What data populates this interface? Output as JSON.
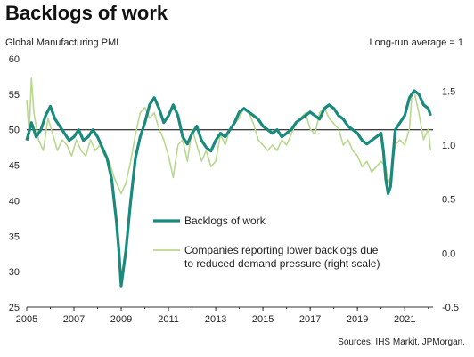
{
  "title": "Backlogs of work",
  "source": "Sources: IHS Markit, JPMorgan.",
  "colors": {
    "primary": "#1a8a7c",
    "secondary": "#b9d88e",
    "reference": "#000000"
  },
  "chart_data": {
    "type": "line",
    "left_axis_title": "Global  Manufacturing  PMI",
    "right_axis_title": "Long-run  average = 1",
    "x_ticks": [
      "2005",
      "2007",
      "2009",
      "2011",
      "2013",
      "2015",
      "2017",
      "2019",
      "2021"
    ],
    "xlim": [
      2005.0,
      2022.2
    ],
    "y_left": {
      "min": 25,
      "max": 60,
      "ticks": [
        "60",
        "55",
        "50",
        "45",
        "40",
        "35",
        "30",
        "25"
      ]
    },
    "y_right": {
      "min": -0.5,
      "max": 1.8,
      "ticks": [
        "1.5",
        "1.0",
        "0.5",
        "0.0",
        "-0.5"
      ]
    },
    "reference_line_left": 50,
    "grid": false,
    "legend": [
      {
        "label": "Backlogs of work"
      },
      {
        "label": "Companies reporting lower backlogs due",
        "label2": "to reduced demand pressure (right scale)"
      }
    ],
    "series": [
      {
        "name": "Backlogs of work",
        "axis": "left",
        "x": [
          2005.0,
          2005.2,
          2005.4,
          2005.6,
          2005.8,
          2006.0,
          2006.2,
          2006.4,
          2006.6,
          2006.8,
          2007.0,
          2007.2,
          2007.4,
          2007.6,
          2007.8,
          2008.0,
          2008.2,
          2008.4,
          2008.6,
          2008.8,
          2008.9,
          2009.0,
          2009.2,
          2009.4,
          2009.6,
          2009.8,
          2010.0,
          2010.2,
          2010.4,
          2010.6,
          2010.8,
          2011.0,
          2011.2,
          2011.4,
          2011.6,
          2011.8,
          2012.0,
          2012.2,
          2012.4,
          2012.6,
          2012.8,
          2013.0,
          2013.2,
          2013.4,
          2013.6,
          2013.8,
          2014.0,
          2014.2,
          2014.4,
          2014.6,
          2014.8,
          2015.0,
          2015.2,
          2015.4,
          2015.6,
          2015.8,
          2016.0,
          2016.2,
          2016.4,
          2016.6,
          2016.8,
          2017.0,
          2017.2,
          2017.4,
          2017.6,
          2017.8,
          2018.0,
          2018.2,
          2018.4,
          2018.6,
          2018.8,
          2019.0,
          2019.2,
          2019.4,
          2019.6,
          2019.8,
          2020.0,
          2020.1,
          2020.2,
          2020.3,
          2020.4,
          2020.5,
          2020.6,
          2020.8,
          2021.0,
          2021.2,
          2021.4,
          2021.6,
          2021.8,
          2022.0,
          2022.1
        ],
        "values": [
          48.5,
          51.0,
          49.0,
          50.0,
          52.0,
          53.3,
          51.5,
          50.5,
          49.5,
          48.5,
          49.0,
          50.0,
          48.5,
          49.0,
          50.0,
          49.0,
          47.5,
          46.0,
          43.0,
          37.0,
          33.0,
          28.0,
          33.0,
          40.0,
          46.0,
          49.0,
          51.0,
          53.5,
          54.5,
          53.0,
          51.0,
          52.0,
          53.5,
          52.0,
          49.0,
          48.0,
          49.5,
          50.5,
          48.5,
          47.5,
          47.0,
          48.5,
          49.5,
          49.0,
          50.0,
          51.0,
          52.5,
          53.0,
          52.5,
          52.0,
          51.5,
          50.5,
          50.0,
          49.5,
          50.0,
          49.0,
          49.5,
          50.0,
          51.0,
          51.5,
          52.0,
          52.5,
          52.0,
          51.5,
          53.0,
          53.5,
          53.0,
          52.0,
          51.5,
          50.5,
          50.0,
          49.5,
          48.5,
          48.0,
          48.5,
          49.0,
          49.5,
          47.0,
          43.0,
          41.0,
          42.0,
          46.0,
          50.0,
          51.0,
          52.0,
          54.5,
          55.5,
          55.0,
          53.5,
          53.0,
          52.0
        ]
      },
      {
        "name": "Companies reporting lower backlogs due to reduced demand pressure (right scale)",
        "axis": "right",
        "x": [
          2005.0,
          2005.1,
          2005.2,
          2005.3,
          2005.5,
          2005.7,
          2005.9,
          2006.1,
          2006.3,
          2006.5,
          2006.7,
          2006.9,
          2007.1,
          2007.3,
          2007.5,
          2007.7,
          2007.9,
          2008.1,
          2008.3,
          2008.5,
          2008.7,
          2008.9,
          2009.0,
          2009.2,
          2009.4,
          2009.6,
          2009.8,
          2010.0,
          2010.2,
          2010.4,
          2010.6,
          2010.8,
          2011.0,
          2011.2,
          2011.4,
          2011.6,
          2011.8,
          2012.0,
          2012.2,
          2012.4,
          2012.6,
          2012.8,
          2013.0,
          2013.2,
          2013.4,
          2013.6,
          2013.8,
          2014.0,
          2014.2,
          2014.4,
          2014.6,
          2014.8,
          2015.0,
          2015.2,
          2015.4,
          2015.6,
          2015.8,
          2016.0,
          2016.2,
          2016.4,
          2016.6,
          2016.8,
          2017.0,
          2017.2,
          2017.4,
          2017.6,
          2017.8,
          2018.0,
          2018.2,
          2018.4,
          2018.6,
          2018.8,
          2019.0,
          2019.2,
          2019.4,
          2019.6,
          2019.8,
          2020.0,
          2020.2,
          2020.3,
          2020.4,
          2020.5,
          2020.6,
          2020.8,
          2021.0,
          2021.2,
          2021.3,
          2021.4,
          2021.6,
          2021.8,
          2022.0,
          2022.1
        ],
        "values": [
          1.42,
          1.1,
          1.62,
          1.3,
          1.05,
          0.95,
          1.25,
          1.1,
          0.95,
          1.05,
          1.0,
          0.9,
          1.05,
          0.95,
          0.9,
          1.05,
          0.95,
          1.0,
          0.9,
          0.85,
          0.7,
          0.6,
          0.55,
          0.65,
          0.85,
          1.1,
          1.3,
          1.35,
          1.25,
          1.3,
          1.15,
          1.05,
          0.9,
          0.7,
          1.0,
          1.05,
          0.85,
          1.15,
          1.0,
          0.85,
          0.95,
          0.8,
          0.85,
          1.1,
          1.0,
          1.15,
          1.2,
          1.25,
          1.35,
          1.3,
          1.2,
          1.05,
          1.0,
          0.95,
          1.0,
          0.95,
          1.05,
          1.0,
          1.1,
          1.2,
          1.25,
          1.3,
          1.15,
          1.1,
          1.3,
          1.35,
          1.25,
          1.2,
          1.15,
          1.0,
          1.05,
          0.95,
          0.9,
          0.8,
          0.85,
          0.75,
          0.8,
          0.85,
          0.8,
          0.65,
          0.7,
          0.85,
          1.0,
          1.05,
          1.0,
          1.15,
          1.45,
          1.5,
          1.3,
          1.05,
          1.15,
          0.95
        ]
      }
    ]
  }
}
